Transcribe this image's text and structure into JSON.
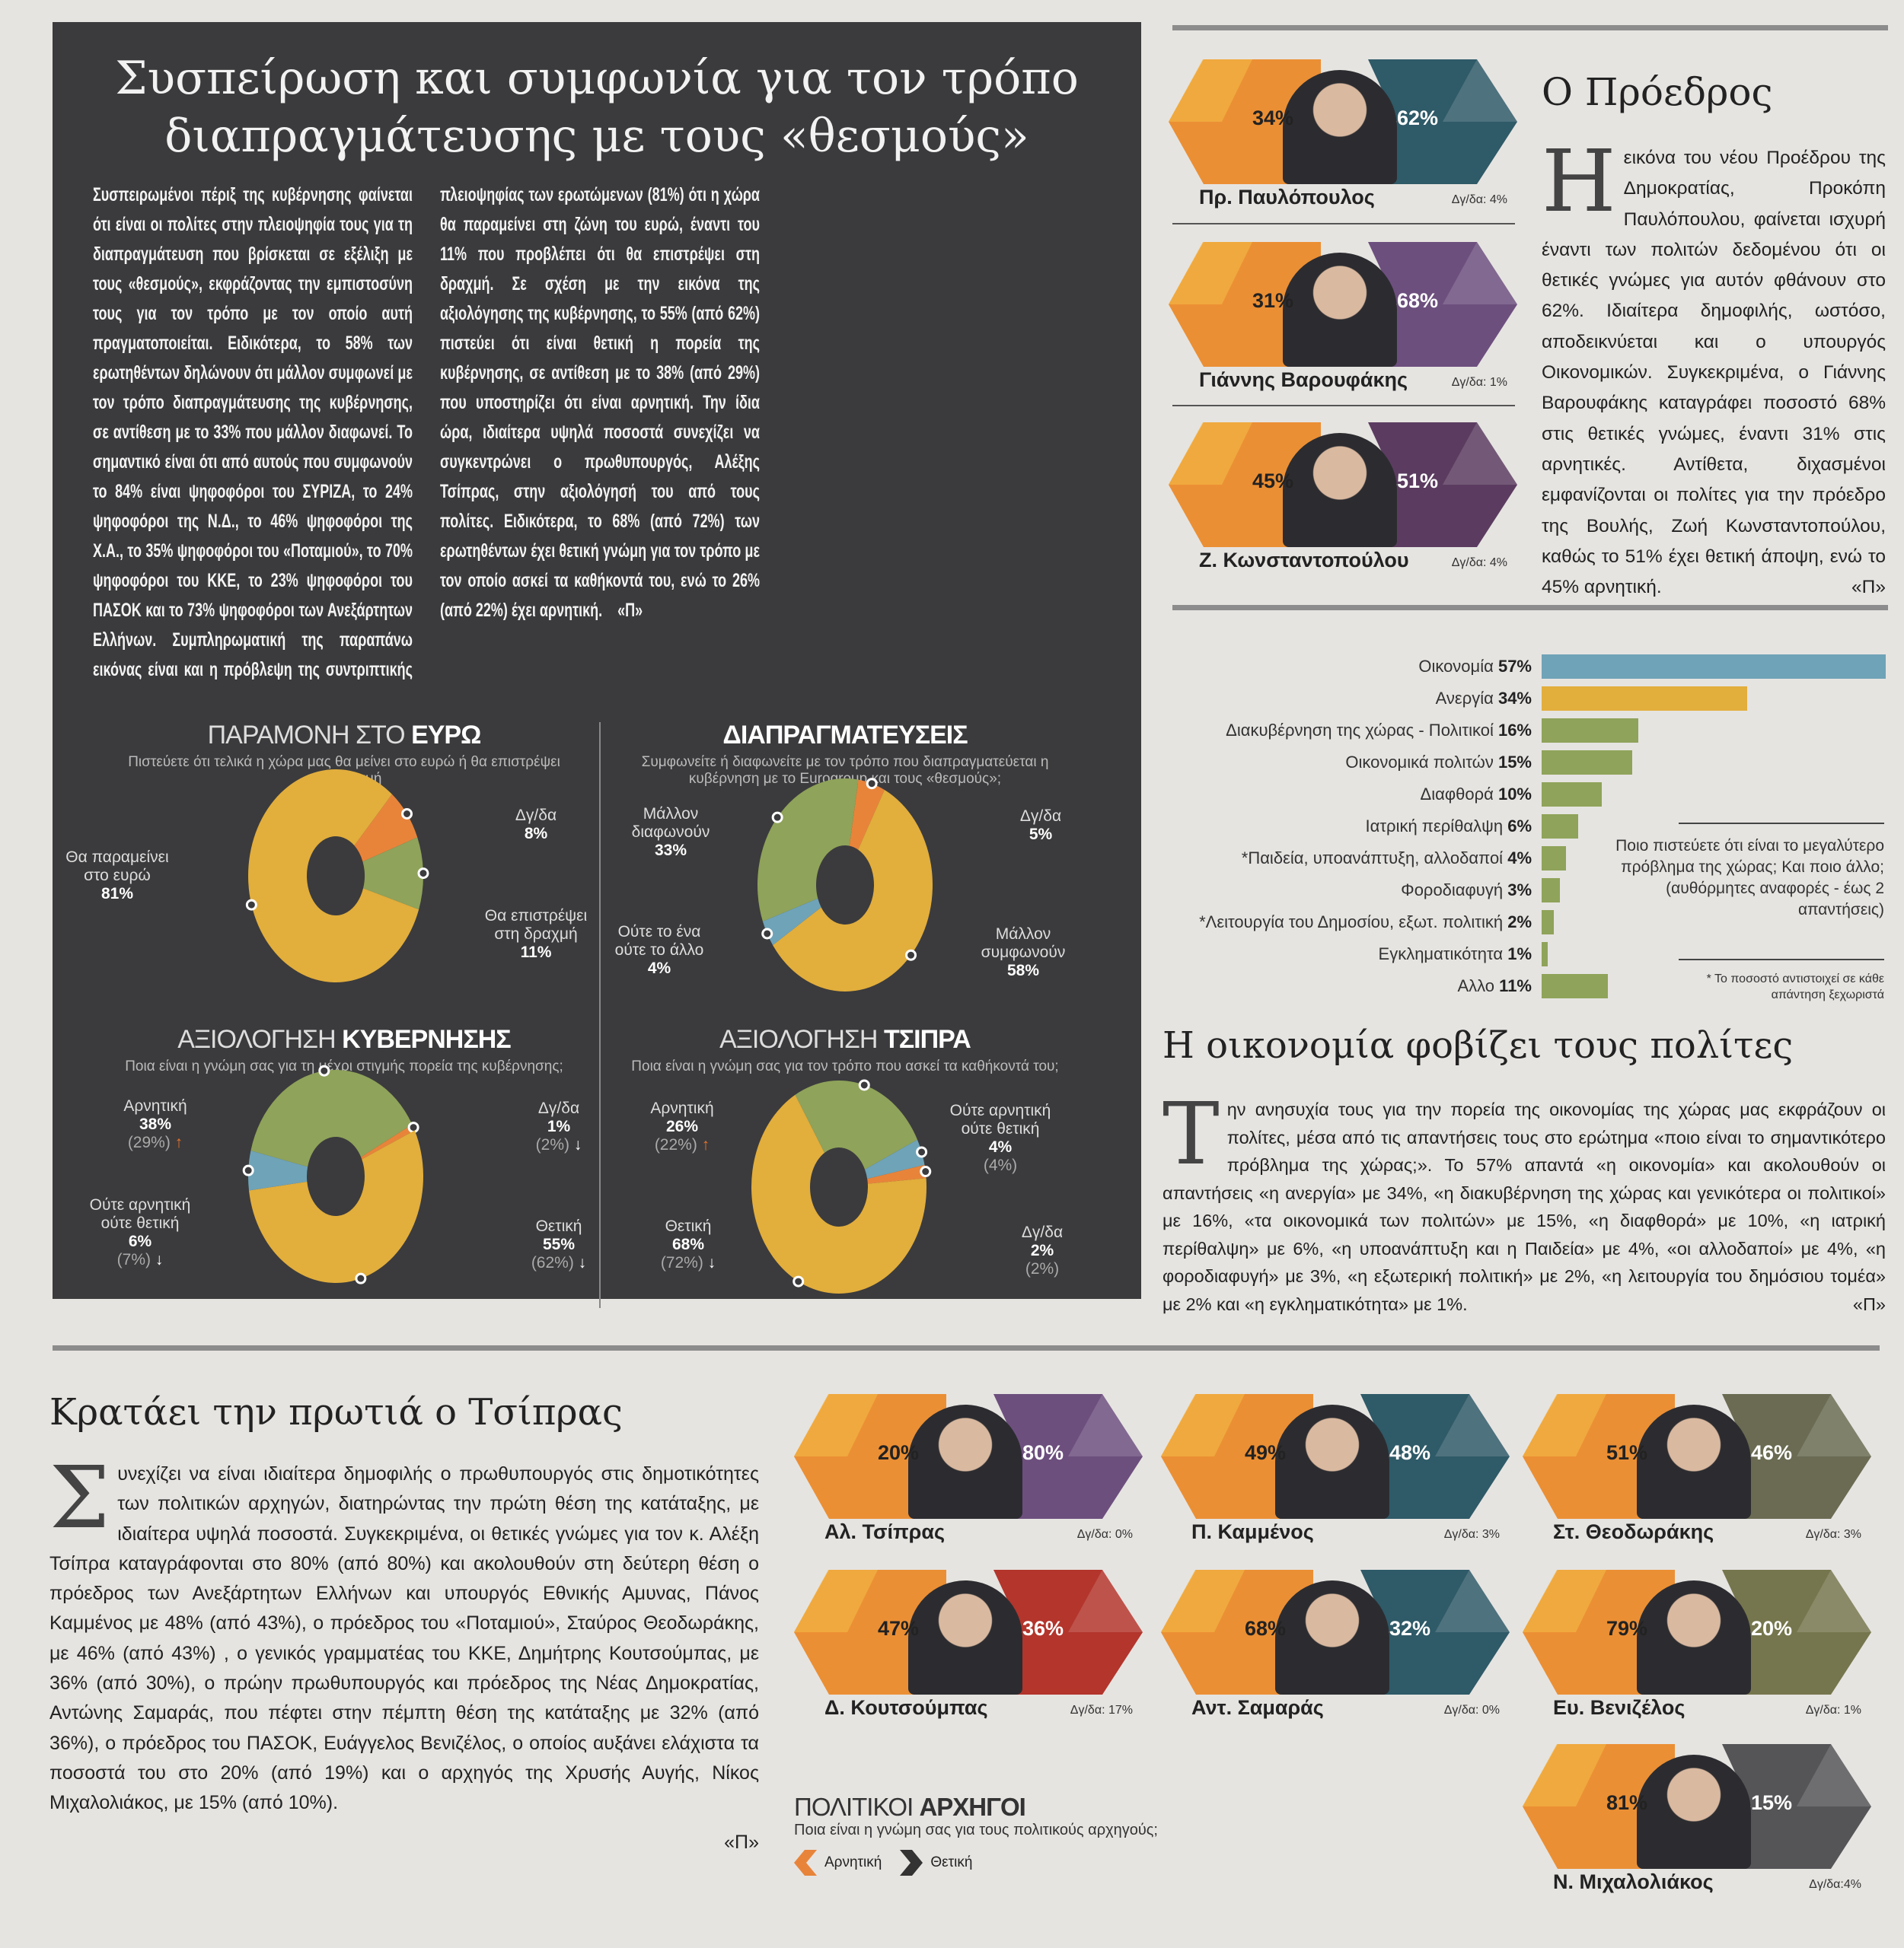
{
  "panel": {
    "title_line1": "Συσπείρωση και συμφωνία για τον τρόπο",
    "title_line2": "διαπραγμάτευσης με τους «θεσμούς»",
    "body": "Συσπειρωμένοι πέριξ της κυβέρνησης φαίνεται ότι είναι οι πολίτες στην πλειοψηφία τους για τη διαπραγμάτευση που βρίσκεται σε εξέλιξη με τους «θεσμούς», εκφράζοντας την εμπιστοσύνη τους για τον τρόπο με τον οποίο αυτή πραγματοποιείται. Ειδικότερα, το 58% των ερωτηθέντων δηλώνουν ότι μάλλον συμφωνεί με τον τρόπο διαπραγμάτευσης της κυβέρνησης, σε αντίθεση με το 33% που μάλλον διαφωνεί. Το σημαντικό είναι ότι από αυτούς που συμφωνούν το 84% είναι ψηφοφόροι του ΣΥΡΙΖΑ, το 24% ψηφοφόροι της Ν.Δ., το 46% ψηφοφόροι της Χ.Α., το 35% ψηφοφόροι του «Ποταμιού», το 70% ψηφοφόροι του ΚΚΕ, το 23% ψηφοφόροι του ΠΑΣΟΚ και το 73% ψηφοφόροι των Ανεξάρτητων Ελλήνων. Συμπληρωματική της παραπάνω εικόνας είναι και η πρόβλεψη της συντριπτικής πλειοψηφίας των ερωτώμενων (81%) ότι η χώρα θα παραμείνει στη ζώνη του ευρώ, έναντι του 11% που προβλέπει ότι θα επιστρέψει στη δραχμή. Σε σχέση με την εικόνα της αξιολόγησης της κυβέρνησης, το 55% (από 62%) πιστεύει ότι είναι θετική η πορεία της κυβέρνησης, σε αντίθεση με το 38% (από 29%) που υποστηρίζει ότι είναι αρνητική. Την ίδια ώρα, ιδιαίτερα υψηλά ποσοστά συνεχίζει να συγκεντρώνει ο πρωθυπουργός, Αλέξης Τσίπρας, στην αξιολόγησή του από τους πολίτες. Ειδικότερα, το 68% (από 72%) των ερωτηθέντων έχει θετική γνώμη για τον τρόπο με τον οποίο ασκεί τα καθήκοντά του, ενώ το 26% (από 22%) έχει αρνητική.",
    "sign": "«Π»"
  },
  "chart_data": [
    {
      "type": "pie",
      "title_light": "ΠΑΡΑΜΟΝΗ ΣΤΟ",
      "title_bold": "ΕΥΡΩ",
      "subtitle": "Πιστεύετε ότι τελικά η χώρα μας θα μείνει στο ευρώ ή θα επιστρέψει στη δραχμή",
      "slices": [
        {
          "label": "Δγ/δα",
          "value": 8,
          "text": "8%",
          "color": "#e8843a"
        },
        {
          "label": "Θα επιστρέψει στη δραχμή",
          "value": 11,
          "text": "11%",
          "color": "#8fa35a"
        },
        {
          "label": "Θα παραμείνει στο ευρώ",
          "value": 81,
          "text": "81%",
          "color": "#e2ae3c"
        }
      ]
    },
    {
      "type": "pie",
      "title_light": "",
      "title_bold": "ΔΙΑΠΡΑΓΜΑΤΕΥΣΕΙΣ",
      "subtitle": "Συμφωνείτε ή διαφωνείτε με τον τρόπο που διαπραγματεύεται η κυβέρνηση με το Eurogroup και τους «θεσμούς»;",
      "slices": [
        {
          "label": "Μάλλον διαφωνούν",
          "value": 33,
          "text": "33%",
          "color": "#8fa35a"
        },
        {
          "label": "Δγ/δα",
          "value": 5,
          "text": "5%",
          "color": "#e8843a"
        },
        {
          "label": "Μάλλον συμφωνούν",
          "value": 58,
          "text": "58%",
          "color": "#e2ae3c"
        },
        {
          "label": "Ούτε το ένα ούτε το άλλο",
          "value": 4,
          "text": "4%",
          "color": "#6fa3b8"
        }
      ]
    },
    {
      "type": "pie",
      "title_light": "ΑΞΙΟΛΟΓΗΣΗ",
      "title_bold": "ΚΥΒΕΡΝΗΣΗΣ",
      "subtitle": "Ποια είναι η γνώμη σας για τη μέχρι στιγμής πορεία της κυβέρνησης;",
      "slices": [
        {
          "label": "Αρνητική",
          "value": 38,
          "text": "38%",
          "prev": "(29%)",
          "color": "#8fa35a"
        },
        {
          "label": "Δγ/δα",
          "value": 1,
          "text": "1%",
          "prev": "(2%)",
          "color": "#e8843a"
        },
        {
          "label": "Θετική",
          "value": 55,
          "text": "55%",
          "prev": "(62%)",
          "color": "#e2ae3c"
        },
        {
          "label": "Ούτε αρνητική ούτε θετική",
          "value": 6,
          "text": "6%",
          "prev": "(7%)",
          "color": "#6fa3b8"
        }
      ]
    },
    {
      "type": "pie",
      "title_light": "ΑΞΙΟΛΟΓΗΣΗ",
      "title_bold": "ΤΣΙΠΡΑ",
      "subtitle": "Ποια είναι η γνώμη σας για τον τρόπο που ασκεί τα καθήκοντά του;",
      "slices": [
        {
          "label": "Αρνητική",
          "value": 26,
          "text": "26%",
          "prev": "(22%)",
          "color": "#8fa35a"
        },
        {
          "label": "Ούτε αρνητική ούτε θετική",
          "value": 4,
          "text": "4%",
          "prev": "(4%)",
          "color": "#6fa3b8"
        },
        {
          "label": "Δγ/δα",
          "value": 2,
          "text": "2%",
          "prev": "(2%)",
          "color": "#e8843a"
        },
        {
          "label": "Θετική",
          "value": 68,
          "text": "68%",
          "prev": "(72%)",
          "color": "#e2ae3c"
        }
      ]
    },
    {
      "type": "bar",
      "orientation": "horizontal",
      "xlim": [
        0,
        57
      ],
      "categories": [
        "Οικονομία",
        "Ανεργία",
        "Διακυβέρνηση της χώρας - Πολιτικοί",
        "Οικονομικά πολιτών",
        "Διαφθορά",
        "Ιατρική περίθαλψη",
        "*Παιδεία, υποανάπτυξη, αλλοδαποί",
        "Φοροδιαφυγή",
        "*Λειτουργία του Δημοσίου, εξωτ. πολιτική",
        "Εγκληματικότητα",
        "Αλλο"
      ],
      "values": [
        57,
        34,
        16,
        15,
        10,
        6,
        4,
        3,
        2,
        1,
        11
      ],
      "labels": [
        "57%",
        "34%",
        "16%",
        "15%",
        "10%",
        "6%",
        "4%",
        "3%",
        "2%",
        "1%",
        "11%"
      ],
      "colors": [
        "#6fa3b8",
        "#e2ae3c",
        "#8fa35a",
        "#8fa35a",
        "#8fa35a",
        "#8fa35a",
        "#8fa35a",
        "#8fa35a",
        "#8fa35a",
        "#8fa35a",
        "#8fa35a"
      ],
      "note": "Ποιο πιστεύετε ότι είναι το μεγαλύτερο πρόβλημα της χώρας; Και ποιο άλλο; (αυθόρμητες αναφορές - έως 2 απαντήσεις)",
      "footnote": "* Το ποσοστό αντιστοιχεί σε κάθε απάντηση ξεχωριστά"
    }
  ],
  "president": {
    "title": "Ο Πρόεδρος",
    "drop": "Η",
    "body": "εικόνα του νέου Προέδρου της Δημοκρατίας, Προκόπη Παυλόπουλου, φαίνεται ισχυρή έναντι των πολιτών δεδομένου ότι οι θετικές γνώμες για αυτόν φθάνουν στο 62%. Ιδιαίτερα δημοφιλής, ωστόσο, αποδεικνύεται και ο υπουργός Οικονομικών. Συγκεκριμένα, ο Γιάννης Βαρουφάκης καταγράφει ποσοστό 68% στις θετικές γνώμες, έναντι 31% στις αρνητικές. Αντίθετα, διχασμένοι εμφανίζονται οι πολίτες για την πρόεδρο της Βουλής, Ζωή Κωνσταντοπούλου, καθώς το 51% έχει θετική άποψη, ενώ το 45% αρνητική.",
    "sign": "«Π»"
  },
  "economy": {
    "title": "Η οικονομία φοβίζει τους πολίτες",
    "drop": "Τ",
    "body": "ην ανησυχία τους για την πορεία της οικονομίας της χώρας μας εκφράζουν οι πολίτες, μέσα από τις απαντήσεις τους στο ερώτημα «ποιο είναι το σημαντικότερο πρόβλημα της χώρας;». Το 57% απαντά «η οικονομία» και ακολουθούν οι απαντήσεις «η ανεργία» με 34%, «η διακυβέρνηση της χώρας και γενικότερα οι πολιτικοί» με 16%, «τα οικονομικά των πολιτών» με 15%, «η διαφθορά» με 10%, «η ιατρική περίθαλψη» με 6%, «η υποανάπτυξη και η Παιδεία» με 4%, «οι αλλοδαποί» με 4%, «η φοροδιαφυγή» με 3%, «η εξωτερική πολιτική» με 2%, «η λειτουργία του δημόσιου τομέα» με 2% και «η εγκληματικότητα» με 1%.",
    "sign": "«Π»"
  },
  "tsipras": {
    "title": "Κρατάει την πρωτιά ο Τσίπρας",
    "drop": "Σ",
    "body": "υνεχίζει να είναι ιδιαίτερα δημοφιλής ο πρωθυπουργός στις δημοτικότητες των πολιτικών αρχηγών, διατηρώντας την πρώτη θέση της κατάταξης, με ιδιαίτερα υψηλά ποσοστά. Συγκεκριμένα, οι θετικές γνώμες για τον κ. Αλέξη Τσίπρα καταγράφονται στο 80% (από 80%) και ακολουθούν στη δεύτερη θέση ο πρόεδρος των Ανεξάρτητων Ελλήνων και υπουργός Εθνικής Αμυνας, Πάνος Καμμένος με 48% (από 43%), ο πρόεδρος του «Ποταμιού», Σταύρος Θεοδωράκης, με 46% (από 43%) , ο γενικός γραμματέας του ΚΚΕ, Δημήτρης Κουτσούμπας, με 36% (από 30%), ο πρώην πρωθυπουργός και πρόεδρος της Νέας Δημοκρατίας, Αντώνης Σαμαράς, που πέφτει στην πέμπτη θέση της κατάταξης με 32% (από 36%), ο πρόεδρος του ΠΑΣΟΚ, Ευάγγελος Βενιζέλος, ο οποίος αυξάνει ελάχιστα τα ποσοστά του στο 20% (από 19%) και ο αρχηγός της Χρυσής Αυγής, Νίκος Μιχαλολιάκος, με 15% (από 10%).",
    "sign": "«Π»"
  },
  "leaders_legend": {
    "title_light": "ΠΟΛΙΤΙΚΟΙ",
    "title_bold": "ΑΡΧΗΓΟΙ",
    "subtitle": "Ποια είναι η γνώμη σας για τους πολιτικούς αρχηγούς;",
    "negative": "Αρνητική",
    "positive": "Θετική",
    "negative_color": "#e8843a",
    "positive_color": "#333333"
  },
  "cards": [
    {
      "name": "Πρ. Παυλόπουλος",
      "neg": "34%",
      "pos": "62%",
      "dyda": "Δγ/δα: 4%",
      "color": "#2f5a68"
    },
    {
      "name": "Γιάννης Βαρουφάκης",
      "neg": "31%",
      "pos": "68%",
      "dyda": "Δγ/δα: 1%",
      "color": "#6d4f7e"
    },
    {
      "name": "Ζ. Κωνσταντοπούλου",
      "neg": "45%",
      "pos": "51%",
      "dyda": "Δγ/δα: 4%",
      "color": "#5b3c60"
    },
    {
      "name": "Αλ. Τσίπρας",
      "neg": "20%",
      "pos": "80%",
      "dyda": "Δγ/δα: 0%",
      "color": "#6d4f7e"
    },
    {
      "name": "Π. Καμμένος",
      "neg": "49%",
      "pos": "48%",
      "dyda": "Δγ/δα: 3%",
      "color": "#2f5a68"
    },
    {
      "name": "Στ. Θεοδωράκης",
      "neg": "51%",
      "pos": "46%",
      "dyda": "Δγ/δα: 3%",
      "color": "#6a6b52"
    },
    {
      "name": "Δ. Κουτσούμπας",
      "neg": "47%",
      "pos": "36%",
      "dyda": "Δγ/δα: 17%",
      "color": "#b3352c"
    },
    {
      "name": "Αντ. Σαμαράς",
      "neg": "68%",
      "pos": "32%",
      "dyda": "Δγ/δα: 0%",
      "color": "#2f5a68"
    },
    {
      "name": "Ευ. Βενιζέλος",
      "neg": "79%",
      "pos": "20%",
      "dyda": "Δγ/δα: 1%",
      "color": "#76764e"
    },
    {
      "name": "Ν. Μιχαλολιάκος",
      "neg": "81%",
      "pos": "15%",
      "dyda": "Δγ/δα:4%",
      "color": "#555558"
    }
  ]
}
